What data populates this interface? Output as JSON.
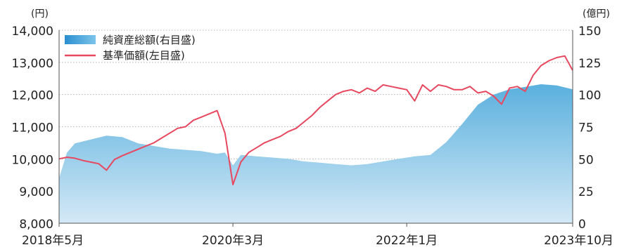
{
  "chart_data": {
    "type": "area",
    "left_axis": {
      "unit": "(円)",
      "range": [
        8000,
        14000
      ],
      "ticks": [
        "8,000",
        "9,000",
        "10,000",
        "11,000",
        "12,000",
        "13,000",
        "14,000"
      ]
    },
    "right_axis": {
      "unit": "(億円)",
      "range": [
        0,
        150
      ],
      "ticks": [
        "0",
        "25",
        "50",
        "75",
        "100",
        "125",
        "150"
      ]
    },
    "x_ticks": [
      "2018年5月",
      "2020年3月",
      "2022年1月",
      "2023年10月"
    ],
    "x_range": [
      "2018-05",
      "2023-10"
    ],
    "legend": {
      "placement": "top-left"
    },
    "grid": "horizontal dotted",
    "series": [
      {
        "name": "純資産総額(右目盛)",
        "axis": "right",
        "type": "area",
        "color_top": "#5ab0de",
        "color_bottom": "#d4e9f6",
        "x": [
          "2018-05",
          "2018-06",
          "2018-07",
          "2018-09",
          "2018-11",
          "2019-01",
          "2019-03",
          "2019-05",
          "2019-07",
          "2019-09",
          "2019-11",
          "2020-01",
          "2020-02",
          "2020-03",
          "2020-04",
          "2020-06",
          "2020-08",
          "2020-10",
          "2020-12",
          "2021-02",
          "2021-04",
          "2021-06",
          "2021-08",
          "2021-10",
          "2021-12",
          "2022-01",
          "2022-02",
          "2022-04",
          "2022-06",
          "2022-08",
          "2022-10",
          "2022-12",
          "2023-02",
          "2023-04",
          "2023-06",
          "2023-08",
          "2023-10"
        ],
        "values": [
          35,
          55,
          62,
          65,
          68,
          67,
          62,
          60,
          58,
          57,
          56,
          54,
          55,
          45,
          53,
          52,
          51,
          50,
          48,
          47,
          46,
          45,
          46,
          48,
          50,
          51,
          52,
          53,
          63,
          77,
          92,
          100,
          104,
          106,
          108,
          107,
          104
        ]
      },
      {
        "name": "基準価額(左目盛)",
        "axis": "left",
        "type": "line",
        "color": "#e8485f",
        "x": [
          "2018-05",
          "2018-06",
          "2018-07",
          "2018-08",
          "2018-09",
          "2018-10",
          "2018-11",
          "2018-12",
          "2019-01",
          "2019-02",
          "2019-03",
          "2019-04",
          "2019-05",
          "2019-06",
          "2019-07",
          "2019-08",
          "2019-09",
          "2019-10",
          "2019-11",
          "2019-12",
          "2020-01",
          "2020-02",
          "2020-03",
          "2020-04",
          "2020-05",
          "2020-06",
          "2020-07",
          "2020-08",
          "2020-09",
          "2020-10",
          "2020-11",
          "2020-12",
          "2021-01",
          "2021-02",
          "2021-03",
          "2021-04",
          "2021-05",
          "2021-06",
          "2021-07",
          "2021-08",
          "2021-09",
          "2021-10",
          "2021-11",
          "2021-12",
          "2022-01",
          "2022-02",
          "2022-03",
          "2022-04",
          "2022-05",
          "2022-06",
          "2022-07",
          "2022-08",
          "2022-09",
          "2022-10",
          "2022-11",
          "2022-12",
          "2023-01",
          "2023-02",
          "2023-03",
          "2023-04",
          "2023-05",
          "2023-06",
          "2023-07",
          "2023-08",
          "2023-09",
          "2023-10"
        ],
        "values": [
          10000,
          10050,
          10020,
          9950,
          9900,
          9850,
          9650,
          9980,
          10100,
          10200,
          10300,
          10400,
          10500,
          10650,
          10800,
          10950,
          11000,
          11200,
          11300,
          11400,
          11500,
          10800,
          9200,
          9900,
          10200,
          10350,
          10500,
          10600,
          10700,
          10850,
          10950,
          11150,
          11350,
          11600,
          11800,
          12000,
          12100,
          12150,
          12050,
          12200,
          12100,
          12300,
          12250,
          12200,
          12150,
          11800,
          12300,
          12100,
          12300,
          12250,
          12150,
          12150,
          12250,
          12050,
          12100,
          11950,
          11700,
          12200,
          12250,
          12100,
          12600,
          12900,
          13050,
          13150,
          13200,
          12750
        ]
      }
    ]
  }
}
